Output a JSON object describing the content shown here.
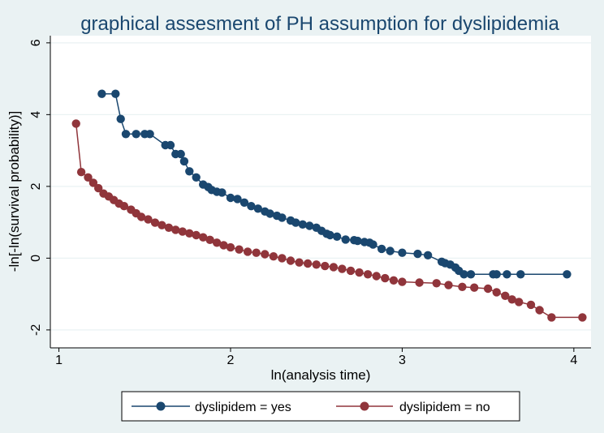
{
  "chart_data": {
    "type": "line",
    "title": "graphical assesment of PH assumption for dyslipidemia",
    "xlabel": "ln(analysis time)",
    "ylabel": "-ln[-ln(survival probability)]",
    "xlim": [
      0.95,
      4.1
    ],
    "ylim": [
      -2.5,
      6.2
    ],
    "xticks": [
      1,
      2,
      3,
      4
    ],
    "yticks": [
      -2,
      0,
      2,
      4,
      6
    ],
    "grid": true,
    "legend_position": "bottom",
    "series": [
      {
        "name": "dyslipidem = yes",
        "color": "#1a476f",
        "x": [
          1.25,
          1.33,
          1.36,
          1.39,
          1.45,
          1.5,
          1.53,
          1.62,
          1.65,
          1.68,
          1.71,
          1.73,
          1.76,
          1.8,
          1.84,
          1.87,
          1.89,
          1.92,
          1.95,
          2.0,
          2.04,
          2.08,
          2.12,
          2.16,
          2.2,
          2.23,
          2.27,
          2.3,
          2.35,
          2.38,
          2.42,
          2.46,
          2.5,
          2.53,
          2.56,
          2.58,
          2.62,
          2.67,
          2.72,
          2.74,
          2.78,
          2.81,
          2.83,
          2.88,
          2.93,
          3.0,
          3.09,
          3.15,
          3.23,
          3.25,
          3.28,
          3.31,
          3.33,
          3.36,
          3.4,
          3.53,
          3.55,
          3.61,
          3.69,
          3.96
        ],
        "y": [
          4.58,
          4.58,
          3.88,
          3.46,
          3.46,
          3.46,
          3.46,
          3.15,
          3.15,
          2.9,
          2.9,
          2.7,
          2.42,
          2.25,
          2.05,
          1.98,
          1.9,
          1.85,
          1.83,
          1.68,
          1.65,
          1.55,
          1.45,
          1.38,
          1.3,
          1.24,
          1.18,
          1.13,
          1.05,
          0.99,
          0.94,
          0.9,
          0.85,
          0.76,
          0.68,
          0.64,
          0.6,
          0.52,
          0.5,
          0.48,
          0.45,
          0.43,
          0.38,
          0.26,
          0.2,
          0.15,
          0.12,
          0.08,
          -0.1,
          -0.14,
          -0.18,
          -0.26,
          -0.35,
          -0.45,
          -0.45,
          -0.45,
          -0.45,
          -0.45,
          -0.45,
          -0.45
        ]
      },
      {
        "name": "dyslipidem = no",
        "color": "#90353b",
        "x": [
          1.1,
          1.13,
          1.17,
          1.2,
          1.23,
          1.26,
          1.29,
          1.32,
          1.35,
          1.38,
          1.42,
          1.45,
          1.48,
          1.52,
          1.56,
          1.6,
          1.64,
          1.68,
          1.72,
          1.76,
          1.8,
          1.84,
          1.88,
          1.92,
          1.96,
          2.0,
          2.05,
          2.1,
          2.15,
          2.2,
          2.25,
          2.3,
          2.35,
          2.4,
          2.45,
          2.5,
          2.55,
          2.6,
          2.65,
          2.7,
          2.75,
          2.8,
          2.85,
          2.9,
          2.95,
          3.0,
          3.1,
          3.2,
          3.27,
          3.35,
          3.42,
          3.5,
          3.55,
          3.6,
          3.64,
          3.68,
          3.75,
          3.8,
          3.87,
          4.05
        ],
        "y": [
          3.75,
          2.4,
          2.25,
          2.1,
          1.95,
          1.8,
          1.72,
          1.62,
          1.52,
          1.45,
          1.35,
          1.25,
          1.15,
          1.08,
          0.99,
          0.92,
          0.85,
          0.79,
          0.74,
          0.69,
          0.64,
          0.58,
          0.51,
          0.43,
          0.36,
          0.3,
          0.24,
          0.18,
          0.15,
          0.11,
          0.05,
          0.0,
          -0.07,
          -0.12,
          -0.15,
          -0.18,
          -0.22,
          -0.25,
          -0.3,
          -0.35,
          -0.4,
          -0.45,
          -0.5,
          -0.56,
          -0.62,
          -0.66,
          -0.68,
          -0.7,
          -0.75,
          -0.8,
          -0.82,
          -0.85,
          -0.95,
          -1.05,
          -1.15,
          -1.22,
          -1.3,
          -1.45,
          -1.65,
          -1.65
        ]
      }
    ]
  }
}
